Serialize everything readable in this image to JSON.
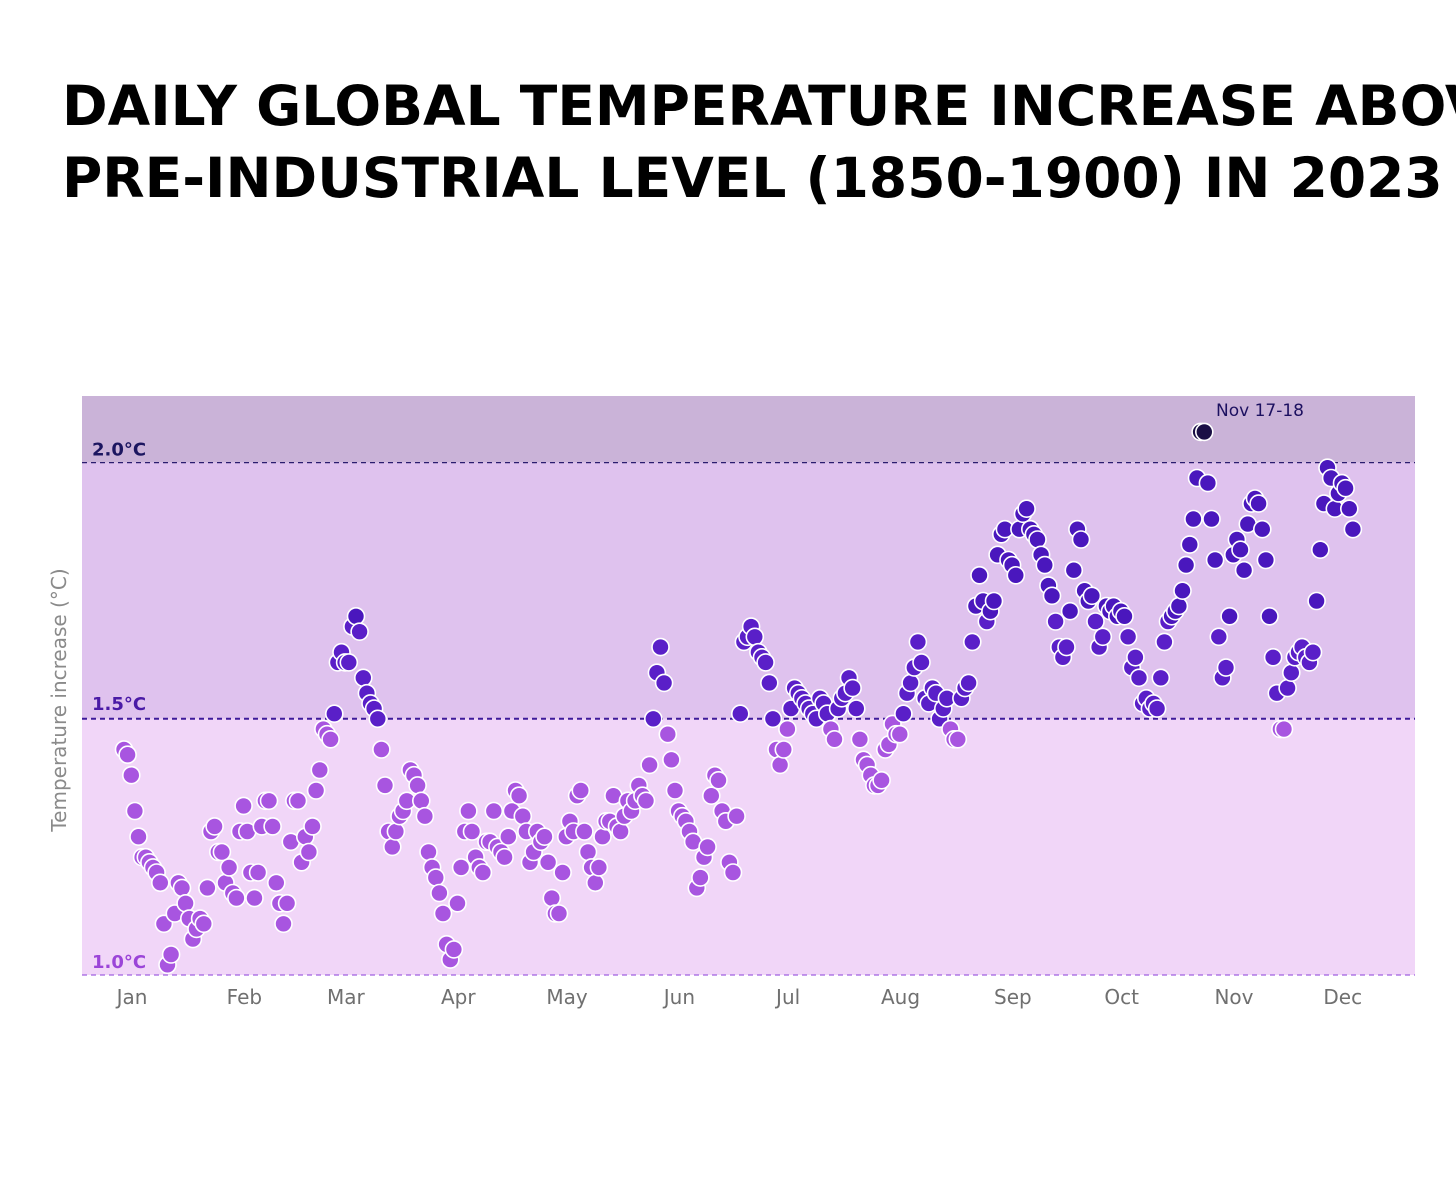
{
  "title": {
    "line1": "DAILY GLOBAL TEMPERATURE INCREASE ABOVE",
    "line2": "PRE-INDUSTRIAL LEVEL (1850-1900) IN 2023"
  },
  "colors": {
    "band_above_2": "#cab3d8",
    "band_1_5_to_2": "#dfc2ee",
    "band_1_to_1_5": "#f1d6f8",
    "low": "#a855e0",
    "mid": "#5a1fc8",
    "high": "#4a17bd",
    "peak": "#1a0f45",
    "label_2": "#1c1660",
    "label_1_5": "#4a1aa6",
    "label_1": "#9b45d8"
  },
  "chart_data": {
    "type": "scatter",
    "ylabel": "Temperature increase (°C)",
    "xlabel": "",
    "months": [
      "Jan",
      "Feb",
      "Mar",
      "Apr",
      "May",
      "Jun",
      "Jul",
      "Aug",
      "Sep",
      "Oct",
      "Nov",
      "Dec"
    ],
    "ylim": [
      1.0,
      2.13
    ],
    "reference_lines": [
      {
        "value": 2.0,
        "label": "2.0°C"
      },
      {
        "value": 1.5,
        "label": "1.5°C"
      },
      {
        "value": 1.0,
        "label": "1.0°C"
      }
    ],
    "annotation": {
      "text": "Nov 17-18",
      "day": 320,
      "value": 2.06
    },
    "days": [
      1.44,
      1.43,
      1.39,
      1.32,
      1.27,
      1.23,
      1.23,
      1.22,
      1.21,
      1.2,
      1.18,
      1.1,
      1.02,
      1.04,
      1.12,
      1.18,
      1.17,
      1.14,
      1.11,
      1.07,
      1.09,
      1.11,
      1.1,
      1.17,
      1.28,
      1.29,
      1.24,
      1.24,
      1.18,
      1.21,
      1.16,
      1.15,
      1.28,
      1.33,
      1.28,
      1.2,
      1.15,
      1.2,
      1.29,
      1.34,
      1.34,
      1.29,
      1.18,
      1.14,
      1.1,
      1.14,
      1.26,
      1.34,
      1.34,
      1.22,
      1.27,
      1.24,
      1.29,
      1.36,
      1.4,
      1.48,
      1.47,
      1.46,
      1.51,
      1.61,
      1.63,
      1.61,
      1.61,
      1.68,
      1.7,
      1.67,
      1.58,
      1.55,
      1.53,
      1.52,
      1.5,
      1.44,
      1.37,
      1.28,
      1.25,
      1.28,
      1.31,
      1.32,
      1.34,
      1.4,
      1.39,
      1.37,
      1.34,
      1.31,
      1.24,
      1.21,
      1.19,
      1.16,
      1.12,
      1.06,
      1.03,
      1.05,
      1.14,
      1.21,
      1.28,
      1.32,
      1.28,
      1.23,
      1.21,
      1.2,
      1.26,
      1.26,
      1.32,
      1.25,
      1.24,
      1.23,
      1.27,
      1.32,
      1.36,
      1.35,
      1.31,
      1.28,
      1.22,
      1.24,
      1.28,
      1.26,
      1.27,
      1.22,
      1.15,
      1.12,
      1.12,
      1.2,
      1.27,
      1.3,
      1.28,
      1.35,
      1.36,
      1.28,
      1.24,
      1.21,
      1.18,
      1.21,
      1.27,
      1.3,
      1.3,
      1.35,
      1.29,
      1.28,
      1.31,
      1.34,
      1.32,
      1.34,
      1.37,
      1.35,
      1.34,
      1.41,
      1.5,
      1.59,
      1.64,
      1.57,
      1.47,
      1.42,
      1.36,
      1.32,
      1.31,
      1.3,
      1.28,
      1.26,
      1.17,
      1.19,
      1.23,
      1.25,
      1.35,
      1.39,
      1.38,
      1.32,
      1.3,
      1.22,
      1.2,
      1.31,
      1.51,
      1.65,
      1.66,
      1.68,
      1.66,
      1.63,
      1.62,
      1.61,
      1.57,
      1.5,
      1.44,
      1.41,
      1.44,
      1.48,
      1.52,
      1.56,
      1.55,
      1.54,
      1.53,
      1.52,
      1.51,
      1.5,
      1.54,
      1.53,
      1.51,
      1.48,
      1.46,
      1.52,
      1.54,
      1.55,
      1.58,
      1.56,
      1.52,
      1.46,
      1.42,
      1.41,
      1.39,
      1.37,
      1.37,
      1.38,
      1.44,
      1.45,
      1.49,
      1.47,
      1.47,
      1.51,
      1.55,
      1.57,
      1.6,
      1.65,
      1.61,
      1.54,
      1.53,
      1.56,
      1.55,
      1.5,
      1.52,
      1.54,
      1.48,
      1.46,
      1.46,
      1.54,
      1.56,
      1.57,
      1.65,
      1.72,
      1.78,
      1.73,
      1.69,
      1.71,
      1.73,
      1.82,
      1.86,
      1.87,
      1.81,
      1.8,
      1.78,
      1.87,
      1.9,
      1.91,
      1.87,
      1.86,
      1.85,
      1.82,
      1.8,
      1.76,
      1.74,
      1.69,
      1.64,
      1.62,
      1.64,
      1.71,
      1.79,
      1.87,
      1.85,
      1.75,
      1.73,
      1.74,
      1.69,
      1.64,
      1.66,
      1.72,
      1.71,
      1.72,
      1.7,
      1.71,
      1.7,
      1.66,
      1.6,
      1.62,
      1.58,
      1.53,
      1.54,
      1.52,
      1.53,
      1.52,
      1.58,
      1.65,
      1.69,
      1.7,
      1.71,
      1.72,
      1.75,
      1.8,
      1.84,
      1.89,
      1.97,
      2.06,
      2.06,
      1.96,
      1.89,
      1.81,
      1.66,
      1.58,
      1.6,
      1.7,
      1.82,
      1.85,
      1.83,
      1.79,
      1.88,
      1.92,
      1.93,
      1.92,
      1.87,
      1.81,
      1.7,
      1.62,
      1.55,
      1.48,
      1.48,
      1.56,
      1.59,
      1.62,
      1.63,
      1.64,
      1.62,
      1.61,
      1.63,
      1.73,
      1.83,
      1.92,
      1.99,
      1.97,
      1.91,
      1.94,
      1.96,
      1.95,
      1.91,
      1.87
    ]
  }
}
